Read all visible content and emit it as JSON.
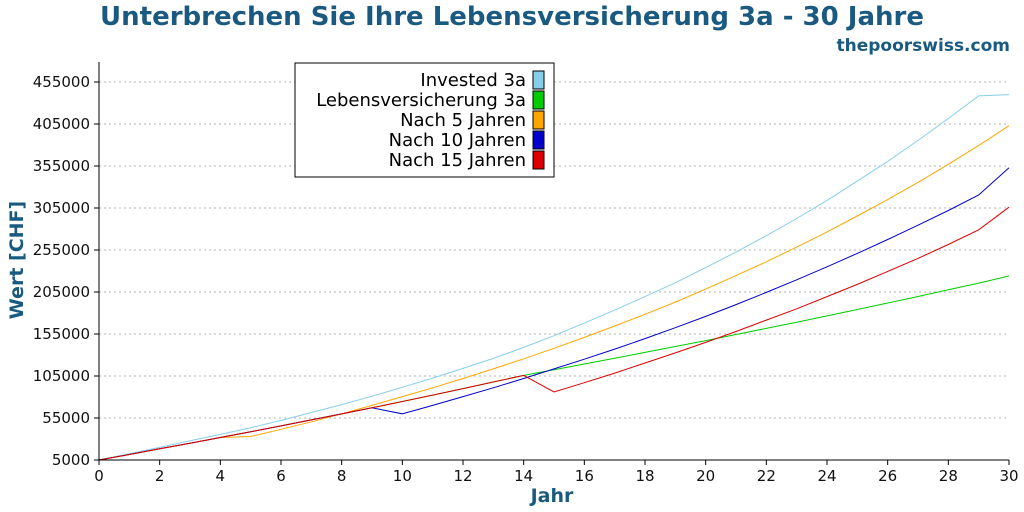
{
  "chart_data": {
    "type": "line",
    "title": "Unterbrechen Sie Ihre Lebensversicherung 3a - 30 Jahre",
    "subtitle": "thepoorswiss.com",
    "xlabel": "Jahr",
    "ylabel": "Wert [CHF]",
    "xlim": [
      0,
      30
    ],
    "ylim": [
      5000,
      505000
    ],
    "x_ticks": [
      "0",
      "2",
      "4",
      "6",
      "8",
      "10",
      "12",
      "14",
      "16",
      "18",
      "20",
      "22",
      "24",
      "26",
      "28",
      "30"
    ],
    "y_ticks": [
      "5000",
      "55000",
      "105000",
      "155000",
      "205000",
      "255000",
      "305000",
      "355000",
      "405000",
      "455000"
    ],
    "grid": "horizontal dotted",
    "legend_position": "top-left",
    "x": [
      0,
      1,
      2,
      3,
      4,
      5,
      6,
      7,
      8,
      9,
      10,
      11,
      12,
      13,
      14,
      15,
      16,
      17,
      18,
      19,
      20,
      21,
      22,
      23,
      24,
      25,
      26,
      27,
      28,
      29,
      30
    ],
    "series": [
      {
        "name": "Invested 3a",
        "color": "#87ceeb",
        "values": [
          5000,
          12500,
          20000,
          27800,
          35500,
          43500,
          52000,
          61500,
          71000,
          81000,
          91500,
          102500,
          114000,
          126000,
          139000,
          153000,
          168000,
          183500,
          199500,
          216000,
          234000,
          252500,
          272000,
          292500,
          314000,
          337000,
          360500,
          385500,
          411500,
          438500,
          440000
        ]
      },
      {
        "name": "Lebensversicherung 3a",
        "color": "#00cc00",
        "values": [
          5000,
          11600,
          18300,
          25000,
          31800,
          38600,
          45600,
          52700,
          59900,
          67200,
          74700,
          82300,
          90000,
          97800,
          105700,
          112500,
          119300,
          126200,
          133100,
          140100,
          147200,
          154400,
          161700,
          169100,
          176600,
          184200,
          191900,
          199700,
          207600,
          215600,
          224000
        ]
      },
      {
        "name": "Nach 5 Jahren",
        "color": "#ffa500",
        "values": [
          5000,
          11600,
          18300,
          25000,
          31800,
          33000,
          41500,
          50500,
          60000,
          70000,
          80500,
          91000,
          102000,
          113500,
          125500,
          138000,
          151000,
          164500,
          178500,
          193000,
          208500,
          224500,
          241000,
          258500,
          276500,
          295500,
          315000,
          335500,
          357000,
          379500,
          403000
        ]
      },
      {
        "name": "Nach 10 Jahren",
        "color": "#0000cc",
        "values": [
          5000,
          11600,
          18300,
          25000,
          31800,
          38600,
          45600,
          52700,
          59900,
          67200,
          60000,
          70000,
          80500,
          91000,
          102000,
          113500,
          125000,
          137000,
          149500,
          162500,
          176000,
          190000,
          204500,
          219500,
          235000,
          251000,
          267500,
          284500,
          302000,
          320500,
          353000
        ]
      },
      {
        "name": "Nach 15 Jahren",
        "color": "#dd0000",
        "values": [
          5000,
          11600,
          18300,
          25000,
          31800,
          38600,
          45600,
          52700,
          59900,
          67200,
          74700,
          82300,
          90000,
          97800,
          105700,
          86000,
          97000,
          108500,
          120500,
          132500,
          145000,
          158000,
          171500,
          185000,
          199500,
          214000,
          229500,
          245000,
          261500,
          279000,
          306000
        ]
      }
    ]
  }
}
